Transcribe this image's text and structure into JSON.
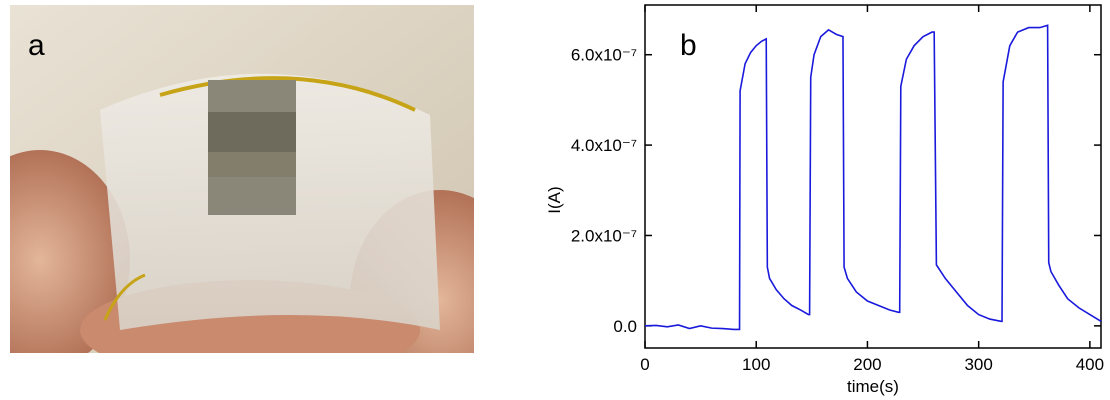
{
  "panel_a": {
    "label": "a"
  },
  "chart_data": {
    "type": "line",
    "panel_label": "b",
    "x_label": "time(s)",
    "y_label": "I(A)",
    "color": "#1a1adc",
    "xlim": [
      0,
      410
    ],
    "xticks": [
      0,
      100,
      200,
      300,
      400
    ],
    "ylim": [
      -4.9e-08,
      7.1e-07
    ],
    "yticks": [
      {
        "value": 0,
        "label": "0.0"
      },
      {
        "value": 2e-07,
        "label": "2.0x10⁻⁷"
      },
      {
        "value": 4e-07,
        "label": "4.0x10⁻⁷"
      },
      {
        "value": 6e-07,
        "label": "6.0x10⁻⁷"
      }
    ],
    "x": [
      0,
      10,
      20,
      30,
      40,
      50,
      60,
      70,
      80,
      85,
      85.5,
      90,
      95,
      100,
      105,
      109,
      110,
      112,
      118,
      125,
      132,
      140,
      147,
      148,
      149,
      152,
      158,
      165,
      172,
      178,
      179,
      182,
      190,
      200,
      210,
      220,
      228,
      229,
      230,
      235,
      242,
      250,
      258,
      260,
      262,
      270,
      280,
      290,
      300,
      310,
      320,
      321,
      322,
      328,
      335,
      345,
      355,
      362,
      363,
      365,
      372,
      380,
      390,
      400,
      410
    ],
    "values": [
      0,
      1e-09,
      -2e-09,
      2e-09,
      -6e-09,
      0,
      -5e-09,
      -6e-09,
      -8e-09,
      -8e-09,
      5.2e-07,
      5.8e-07,
      6.05e-07,
      6.2e-07,
      6.3e-07,
      6.35e-07,
      1.3e-07,
      1.05e-07,
      8e-08,
      6e-08,
      4.5e-08,
      3.5e-08,
      2.5e-08,
      2.5e-08,
      5.5e-07,
      6e-07,
      6.4e-07,
      6.55e-07,
      6.45e-07,
      6.4e-07,
      1.3e-07,
      1.05e-07,
      7.5e-08,
      5.5e-08,
      4.5e-08,
      3.5e-08,
      3e-08,
      3e-08,
      5.3e-07,
      5.9e-07,
      6.2e-07,
      6.4e-07,
      6.5e-07,
      6.5e-07,
      1.35e-07,
      1.05e-07,
      7.5e-08,
      4.5e-08,
      2.5e-08,
      1.5e-08,
      1e-08,
      1e-08,
      5.4e-07,
      6.2e-07,
      6.5e-07,
      6.6e-07,
      6.6e-07,
      6.65e-07,
      1.4e-07,
      1.2e-07,
      9e-08,
      6e-08,
      4e-08,
      2.5e-08,
      1e-08
    ]
  }
}
